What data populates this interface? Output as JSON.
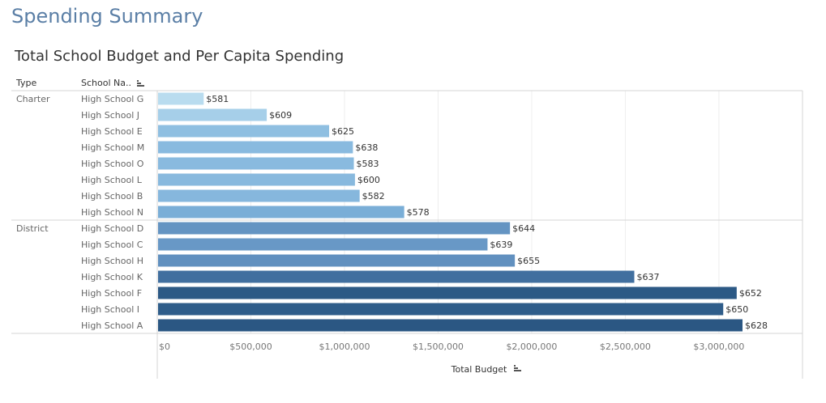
{
  "page": {
    "title": "Spending Summary"
  },
  "header": {
    "type_label": "Type",
    "school_label": "School Na.."
  },
  "chart_data": {
    "type": "bar",
    "orientation": "horizontal",
    "title": "Total School Budget and Per Capita Spending",
    "xlabel": "Total Budget",
    "ylabel": "",
    "xlim": [
      0,
      3500000
    ],
    "x_ticks": [
      {
        "value": 0,
        "label": "$0"
      },
      {
        "value": 500000,
        "label": "$500,000"
      },
      {
        "value": 1000000,
        "label": "$1,000,000"
      },
      {
        "value": 1500000,
        "label": "$1,500,000"
      },
      {
        "value": 2000000,
        "label": "$2,000,000"
      },
      {
        "value": 2500000,
        "label": "$2,500,000"
      },
      {
        "value": 3000000,
        "label": "$3,000,000"
      }
    ],
    "grid": true,
    "groups": [
      {
        "type": "Charter",
        "rows": [
          {
            "school": "High School G",
            "budget": 248000,
            "per_capita": "$581",
            "color": "#b9dcef"
          },
          {
            "school": "High School J",
            "budget": 585000,
            "per_capita": "$609",
            "color": "#a6cfe9"
          },
          {
            "school": "High School E",
            "budget": 918000,
            "per_capita": "$625",
            "color": "#8fbfe1"
          },
          {
            "school": "High School M",
            "budget": 1045000,
            "per_capita": "$638",
            "color": "#89badf"
          },
          {
            "school": "High School O",
            "budget": 1050000,
            "per_capita": "$583",
            "color": "#89badf"
          },
          {
            "school": "High School L",
            "budget": 1056000,
            "per_capita": "$600",
            "color": "#88b9de"
          },
          {
            "school": "High School B",
            "budget": 1081000,
            "per_capita": "$582",
            "color": "#86b7dd"
          },
          {
            "school": "High School N",
            "budget": 1319000,
            "per_capita": "$578",
            "color": "#7aaed7"
          }
        ]
      },
      {
        "type": "District",
        "rows": [
          {
            "school": "High School D",
            "budget": 1884000,
            "per_capita": "$644",
            "color": "#6494c2"
          },
          {
            "school": "High School C",
            "budget": 1764000,
            "per_capita": "$639",
            "color": "#6898c6"
          },
          {
            "school": "High School H",
            "budget": 1910000,
            "per_capita": "$655",
            "color": "#6190bf"
          },
          {
            "school": "High School K",
            "budget": 2548000,
            "per_capita": "$637",
            "color": "#416f9f"
          },
          {
            "school": "High School F",
            "budget": 3095000,
            "per_capita": "$652",
            "color": "#2c5985"
          },
          {
            "school": "High School I",
            "budget": 3023000,
            "per_capita": "$650",
            "color": "#2f5d8a"
          },
          {
            "school": "High School A",
            "budget": 3126000,
            "per_capita": "$628",
            "color": "#2b5783"
          }
        ]
      }
    ]
  }
}
